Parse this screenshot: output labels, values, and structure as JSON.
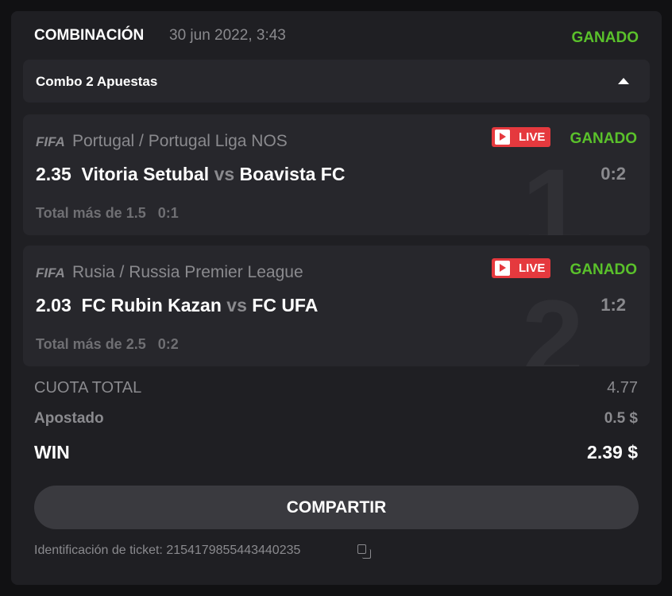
{
  "header": {
    "title": "COMBINACIÓN",
    "date": "30 jun 2022, 3:43",
    "status": "GANADO"
  },
  "combo": {
    "label": "Combo 2 Apuestas"
  },
  "events": [
    {
      "number": "1",
      "sport_logo": "FIFA",
      "league": "Portugal / Portugal Liga NOS",
      "live": "LIVE",
      "status": "GANADO",
      "odds": "2.35",
      "home": "Vitoria Setubal",
      "vs": "vs",
      "away": "Boavista FC",
      "score": "0:2",
      "market": "Total más de 1.5",
      "market_score": "0:1"
    },
    {
      "number": "2",
      "sport_logo": "FIFA",
      "league": "Rusia / Russia Premier League",
      "live": "LIVE",
      "status": "GANADO",
      "odds": "2.03",
      "home": "FC Rubin Kazan",
      "vs": "vs",
      "away": "FC UFA",
      "score": "1:2",
      "market": "Total más de 2.5",
      "market_score": "0:2"
    }
  ],
  "summary": {
    "total_odds_label": "CUOTA TOTAL",
    "total_odds": "4.77",
    "stake_label": "Apostado",
    "stake": "0.5 $",
    "win_label": "WIN",
    "win": "2.39 $"
  },
  "share_label": "COMPARTIR",
  "ticket": {
    "label": "Identificación de ticket: 2154179855443440235"
  },
  "colors": {
    "won": "#5ac12b",
    "live": "#e5393e"
  }
}
